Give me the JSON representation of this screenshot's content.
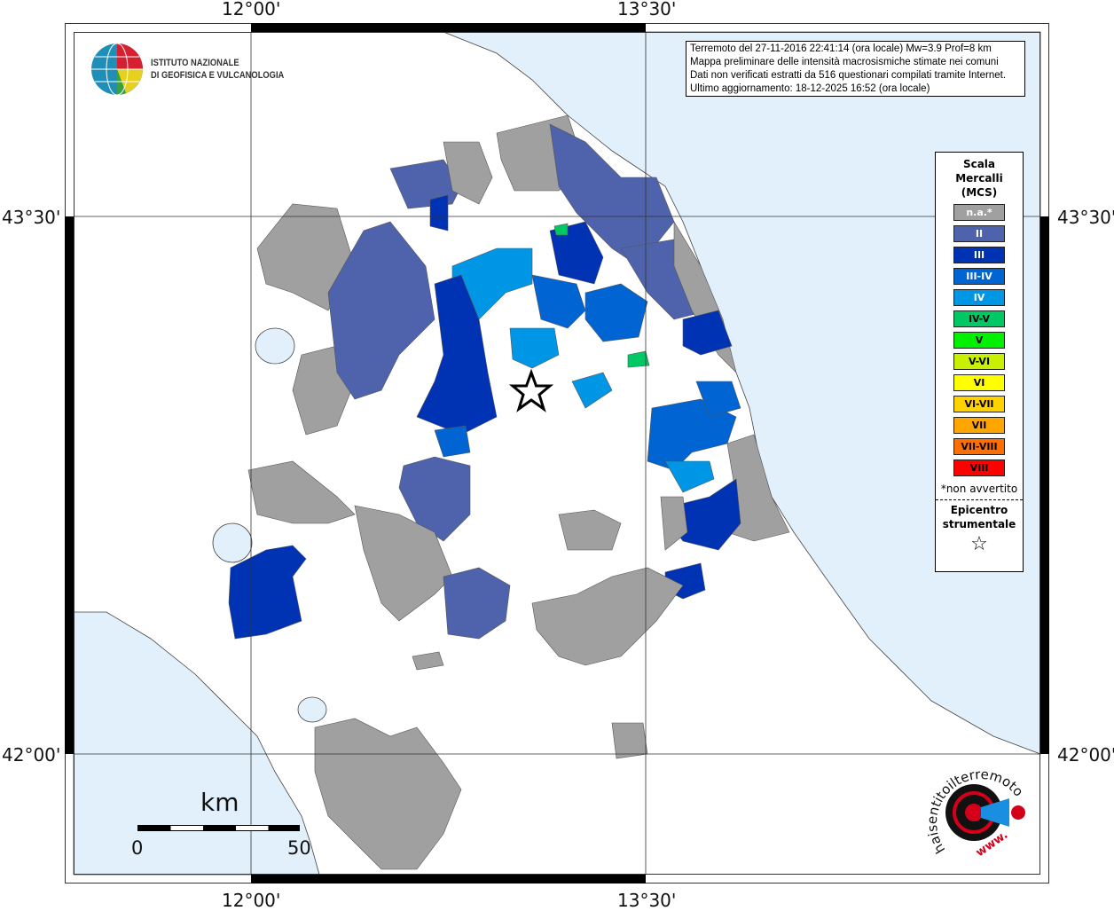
{
  "coords": {
    "lon_left": "12°00'",
    "lon_right": "13°30'",
    "lat_top": "43°30'",
    "lat_bottom": "42°00'"
  },
  "info": {
    "line1": "Terremoto del 27-11-2016 22:41:14 (ora locale) Mw=3.9 Prof=8 km",
    "line2": "Mappa preliminare delle intensità macrosismiche stimate nei comuni",
    "line3": "Dati non verificati estratti da 516 questionari compilati tramite Internet.",
    "line4": "Ultimo aggiornamento: 18-12-2025 16:52 (ora locale)"
  },
  "legend": {
    "title1": "Scala",
    "title2": "Mercalli",
    "title3": "(MCS)",
    "classes": [
      {
        "label": "n.a.*",
        "color": "#a0a0a0",
        "text": "#fff"
      },
      {
        "label": "II",
        "color": "#4f63ad",
        "text": "#fff"
      },
      {
        "label": "III",
        "color": "#0032b4",
        "text": "#fff"
      },
      {
        "label": "III-IV",
        "color": "#0064d2",
        "text": "#fff"
      },
      {
        "label": "IV",
        "color": "#0096e6",
        "text": "#fff"
      },
      {
        "label": "IV-V",
        "color": "#00c864",
        "text": "#000"
      },
      {
        "label": "V",
        "color": "#00f000",
        "text": "#000"
      },
      {
        "label": "V-VI",
        "color": "#c8f000",
        "text": "#000"
      },
      {
        "label": "VI",
        "color": "#ffff00",
        "text": "#000"
      },
      {
        "label": "VI-VII",
        "color": "#ffd200",
        "text": "#000"
      },
      {
        "label": "VII",
        "color": "#ffa500",
        "text": "#000"
      },
      {
        "label": "VII-VIII",
        "color": "#ff6e00",
        "text": "#000"
      },
      {
        "label": "VIII",
        "color": "#ff0000",
        "text": "#000"
      }
    ],
    "note": "*non avvertito",
    "epicenter1": "Epicentro",
    "epicenter2": "strumentale",
    "epicenter_symbol": "☆"
  },
  "ingv": {
    "line1": "ISTITUTO NAZIONALE",
    "line2": "DI GEOFISICA E VULCANOLOGIA"
  },
  "hsit": {
    "text": "haisentitoilterremoto.it",
    "www": "www."
  },
  "scale": {
    "unit": "km",
    "min": "0",
    "max": "50"
  },
  "colors": {
    "sea": "#e1f0fb",
    "na": "#a0a0a0",
    "II": "#4f63ad",
    "III": "#0032b4",
    "IIIIV": "#0064d2",
    "IV": "#0096e6",
    "IVV": "#00c864"
  }
}
